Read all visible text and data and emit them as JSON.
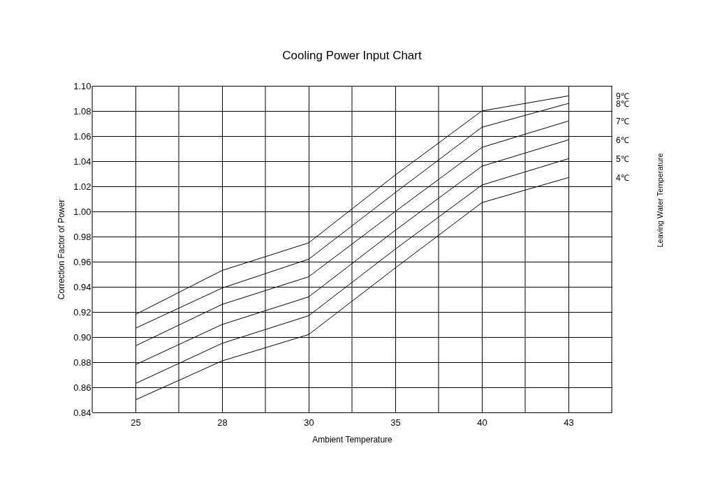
{
  "chart_data": {
    "type": "line",
    "title": "Cooling Power Input Chart",
    "xlabel": "Ambient Temperature",
    "ylabel": "Correction Factor of Power",
    "legend_title": "Leaving Water Temperature",
    "categories": [
      "25",
      "28",
      "30",
      "35",
      "40",
      "43"
    ],
    "series": [
      {
        "name": "9℃",
        "color": "#000000",
        "values": [
          0.918,
          0.953,
          0.975,
          1.029,
          1.08,
          1.092
        ]
      },
      {
        "name": "8℃",
        "color": "#000000",
        "values": [
          0.907,
          0.939,
          0.962,
          1.015,
          1.067,
          1.086
        ]
      },
      {
        "name": "7℃",
        "color": "#000000",
        "values": [
          0.893,
          0.926,
          0.948,
          1.0,
          1.051,
          1.072
        ]
      },
      {
        "name": "6℃",
        "color": "#000000",
        "values": [
          0.878,
          0.91,
          0.932,
          0.985,
          1.036,
          1.057
        ]
      },
      {
        "name": "5℃",
        "color": "#000000",
        "values": [
          0.863,
          0.895,
          0.917,
          0.97,
          1.021,
          1.042
        ]
      },
      {
        "name": "4℃",
        "color": "#000000",
        "values": [
          0.85,
          0.881,
          0.902,
          0.955,
          1.007,
          1.027
        ]
      }
    ],
    "ylim": [
      0.84,
      1.1
    ],
    "yticks": [
      {
        "value": 0.84,
        "label": "0.84"
      },
      {
        "value": 0.86,
        "label": "0.86"
      },
      {
        "value": 0.88,
        "label": "0.88"
      },
      {
        "value": 0.9,
        "label": "0.90"
      },
      {
        "value": 0.92,
        "label": "0.92"
      },
      {
        "value": 0.94,
        "label": "0.94"
      },
      {
        "value": 0.96,
        "label": "0.96"
      },
      {
        "value": 0.98,
        "label": "0.98"
      },
      {
        "value": 1.0,
        "label": "1.00"
      },
      {
        "value": 1.02,
        "label": "1.02"
      },
      {
        "value": 1.04,
        "label": "1.04"
      },
      {
        "value": 1.06,
        "label": "1.06"
      },
      {
        "value": 1.08,
        "label": "1.08"
      },
      {
        "value": 1.1,
        "label": "1.10"
      }
    ],
    "grid": true,
    "marker": "none",
    "line_style": "solid"
  }
}
